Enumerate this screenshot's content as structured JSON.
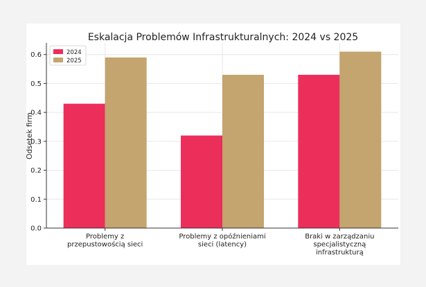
{
  "chart_data": {
    "type": "bar",
    "title": "Eskalacja Problemów Infrastrukturalnych: 2024 vs 2025",
    "xlabel": "",
    "ylabel": "Odsetek firm",
    "ylim": [
      0,
      0.64
    ],
    "yticks": [
      0.0,
      0.1,
      0.2,
      0.3,
      0.4,
      0.5,
      0.6
    ],
    "ytick_labels": [
      "0.0",
      "0.1",
      "0.2",
      "0.3",
      "0.4",
      "0.5",
      "0.6"
    ],
    "grid": true,
    "legend_position": "top-left",
    "categories": [
      [
        "Problemy z",
        "przepustowością sieci"
      ],
      [
        "Problemy z opóźnieniami",
        "sieci (latency)"
      ],
      [
        "Braki w zarządzaniu",
        "specjalistyczną",
        "infrastrukturą"
      ]
    ],
    "series": [
      {
        "name": "2024",
        "color": "#ec2e5a",
        "values": [
          0.43,
          0.32,
          0.53
        ]
      },
      {
        "name": "2025",
        "color": "#c4a46f",
        "values": [
          0.59,
          0.53,
          0.61
        ]
      }
    ]
  }
}
